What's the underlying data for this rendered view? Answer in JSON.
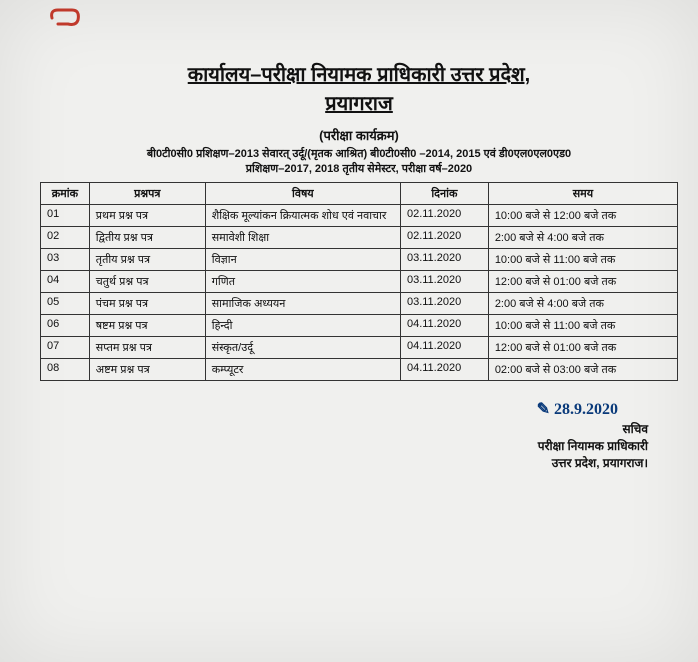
{
  "clip_color": "#c0392b",
  "heading_line1": "कार्यालय–परीक्षा नियामक प्राधिकारी उत्तर प्रदेश,",
  "heading_line2": "प्रयागराज",
  "subheading": "(परीक्षा कार्यक्रम)",
  "context_line1": "बी0टी0सी0 प्रशिक्षण–2013 सेवारत् उर्दू/(मृतक आश्रित) बी0टी0सी0 –2014, 2015 एवं डी0एल0एल0एड0",
  "context_line2": "प्रशिक्षण–2017, 2018 तृतीय सेमेस्टर, परीक्षा वर्ष–2020",
  "table": {
    "headers": [
      "क्रमांक",
      "प्रश्नपत्र",
      "विषय",
      "दिनांक",
      "समय"
    ],
    "rows": [
      [
        "01",
        "प्रथम प्रश्न पत्र",
        "शैक्षिक मूल्यांकन क्रियात्मक शोध एवं नवाचार",
        "02.11.2020",
        "10:00 बजे से 12:00 बजे तक"
      ],
      [
        "02",
        "द्वितीय प्रश्न पत्र",
        "समावेशी शिक्षा",
        "02.11.2020",
        "2:00 बजे से 4:00 बजे तक"
      ],
      [
        "03",
        "तृतीय प्रश्न पत्र",
        "विज्ञान",
        "03.11.2020",
        "10:00 बजे से 11:00 बजे तक"
      ],
      [
        "04",
        "चतुर्थ प्रश्न पत्र",
        "गणित",
        "03.11.2020",
        "12:00 बजे से 01:00 बजे तक"
      ],
      [
        "05",
        "पंचम प्रश्न पत्र",
        "सामाजिक अध्ययन",
        "03.11.2020",
        "2:00 बजे से 4:00 बजे तक"
      ],
      [
        "06",
        "षष्टम प्रश्न पत्र",
        "हिन्दी",
        "04.11.2020",
        "10:00 बजे से 11:00 बजे तक"
      ],
      [
        "07",
        "सप्तम प्रश्न पत्र",
        "संस्कृत/उर्दू",
        "04.11.2020",
        "12:00 बजे से 01:00 बजे तक"
      ],
      [
        "08",
        "अष्टम प्रश्न पत्र",
        "कम्प्यूटर",
        "04.11.2020",
        "02:00 बजे से 03:00 बजे तक"
      ]
    ]
  },
  "signature": {
    "scribble": "✎ 28.9.2020",
    "line1": "सचिव",
    "line2": "परीक्षा नियामक प्राधिकारी",
    "line3": "उत्तर प्रदेश, प्रयागराज।"
  }
}
